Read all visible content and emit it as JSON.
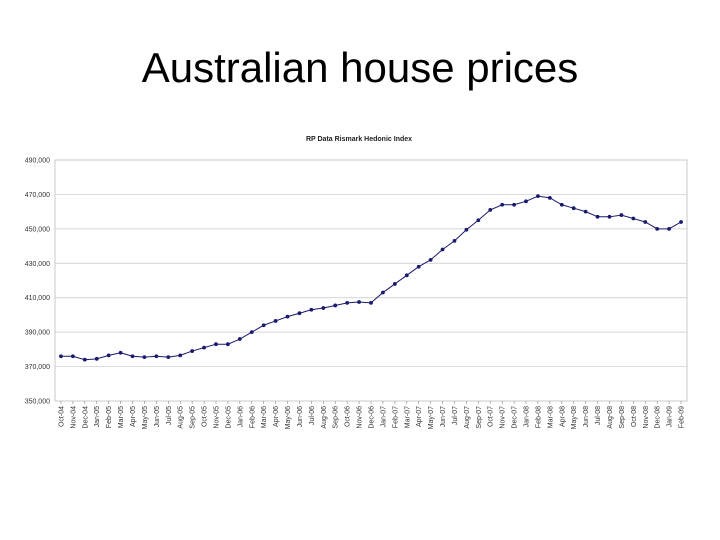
{
  "slide": {
    "title": "Australian house prices"
  },
  "chart_data": {
    "type": "line",
    "title": "RP Data Rismark Hedonic Index",
    "xlabel": "",
    "ylabel": "",
    "ylim": [
      350000,
      490000
    ],
    "yticks": [
      350000,
      370000,
      390000,
      410000,
      430000,
      450000,
      470000,
      490000
    ],
    "ytick_labels": [
      "350,000",
      "370,000",
      "390,000",
      "410,000",
      "430,000",
      "450,000",
      "470,000",
      "490,000"
    ],
    "grid": true,
    "legend": "none",
    "line_color": "#1a1a6e",
    "x": [
      "Oct-04",
      "Nov-04",
      "Dec-04",
      "Jan-05",
      "Feb-05",
      "Mar-05",
      "Apr-05",
      "May-05",
      "Jun-05",
      "Jul-05",
      "Aug-05",
      "Sep-05",
      "Oct-05",
      "Nov-05",
      "Dec-05",
      "Jan-06",
      "Feb-06",
      "Mar-06",
      "Apr-06",
      "May-06",
      "Jun-06",
      "Jul-06",
      "Aug-06",
      "Sep-06",
      "Oct-06",
      "Nov-06",
      "Dec-06",
      "Jan-07",
      "Feb-07",
      "Mar-07",
      "Apr-07",
      "May-07",
      "Jun-07",
      "Jul-07",
      "Aug-07",
      "Sep-07",
      "Oct-07",
      "Nov-07",
      "Dec-07",
      "Jan-08",
      "Feb-08",
      "Mar-08",
      "Apr-08",
      "May-08",
      "Jun-08",
      "Jul-08",
      "Aug-08",
      "Sep-08",
      "Oct-08",
      "Nov-08",
      "Dec-08",
      "Jan-09",
      "Feb-09"
    ],
    "series": [
      {
        "values": [
          376000,
          376000,
          374000,
          374500,
          376500,
          378000,
          376000,
          375500,
          376000,
          375500,
          376500,
          379000,
          381000,
          383000,
          383000,
          386000,
          390000,
          394000,
          396500,
          399000,
          401000,
          403000,
          404000,
          405500,
          407000,
          407500,
          407000,
          413000,
          418000,
          423000,
          428000,
          432000,
          438000,
          443000,
          449500,
          455000,
          461000,
          464000,
          464000,
          466000,
          469000,
          468000,
          464000,
          462000,
          460000,
          457000,
          457000,
          458000,
          456000,
          454000,
          450000,
          450000,
          454000
        ]
      }
    ]
  }
}
